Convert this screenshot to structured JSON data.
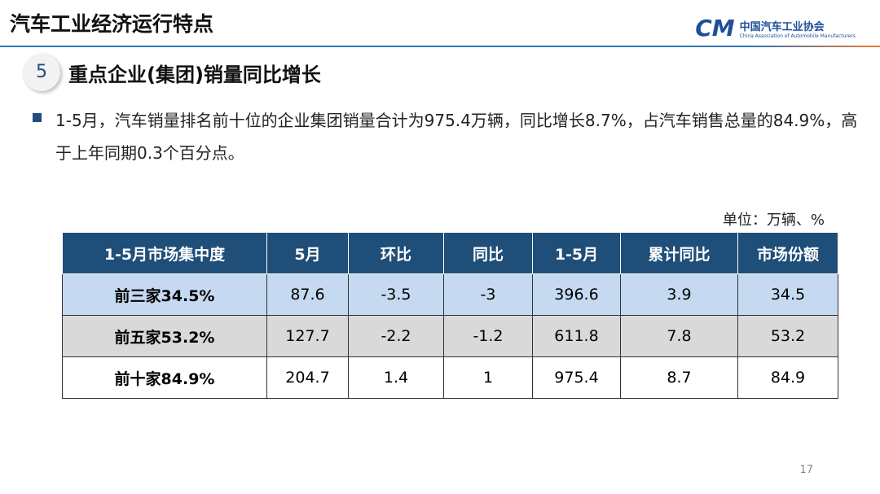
{
  "header": {
    "title": "汽车工业经济运行特点",
    "logo_cn": "中国汽车工业协会",
    "logo_en": "China Association of Automobile Manufacturers"
  },
  "section": {
    "number": "5",
    "title": "重点企业(集团)销量同比增长"
  },
  "bullet": "1-5月，汽车销量排名前十位的企业集团销量合计为975.4万辆，同比增长8.7%，占汽车销售总量的84.9%，高于上年同期0.3个百分点。",
  "unit": "单位：万辆、%",
  "table": {
    "columns": [
      "1-5月市场集中度",
      "5月",
      "环比",
      "同比",
      "1-5月",
      "累计同比",
      "市场份额"
    ],
    "rows": [
      [
        "前三家34.5%",
        "87.6",
        "-3.5",
        "-3",
        "396.6",
        "3.9",
        "34.5"
      ],
      [
        "前五家53.2%",
        "127.7",
        "-2.2",
        "-1.2",
        "611.8",
        "7.8",
        "53.2"
      ],
      [
        "前十家84.9%",
        "204.7",
        "1.4",
        "1",
        "975.4",
        "8.7",
        "84.9"
      ]
    ]
  },
  "page_number": "17"
}
